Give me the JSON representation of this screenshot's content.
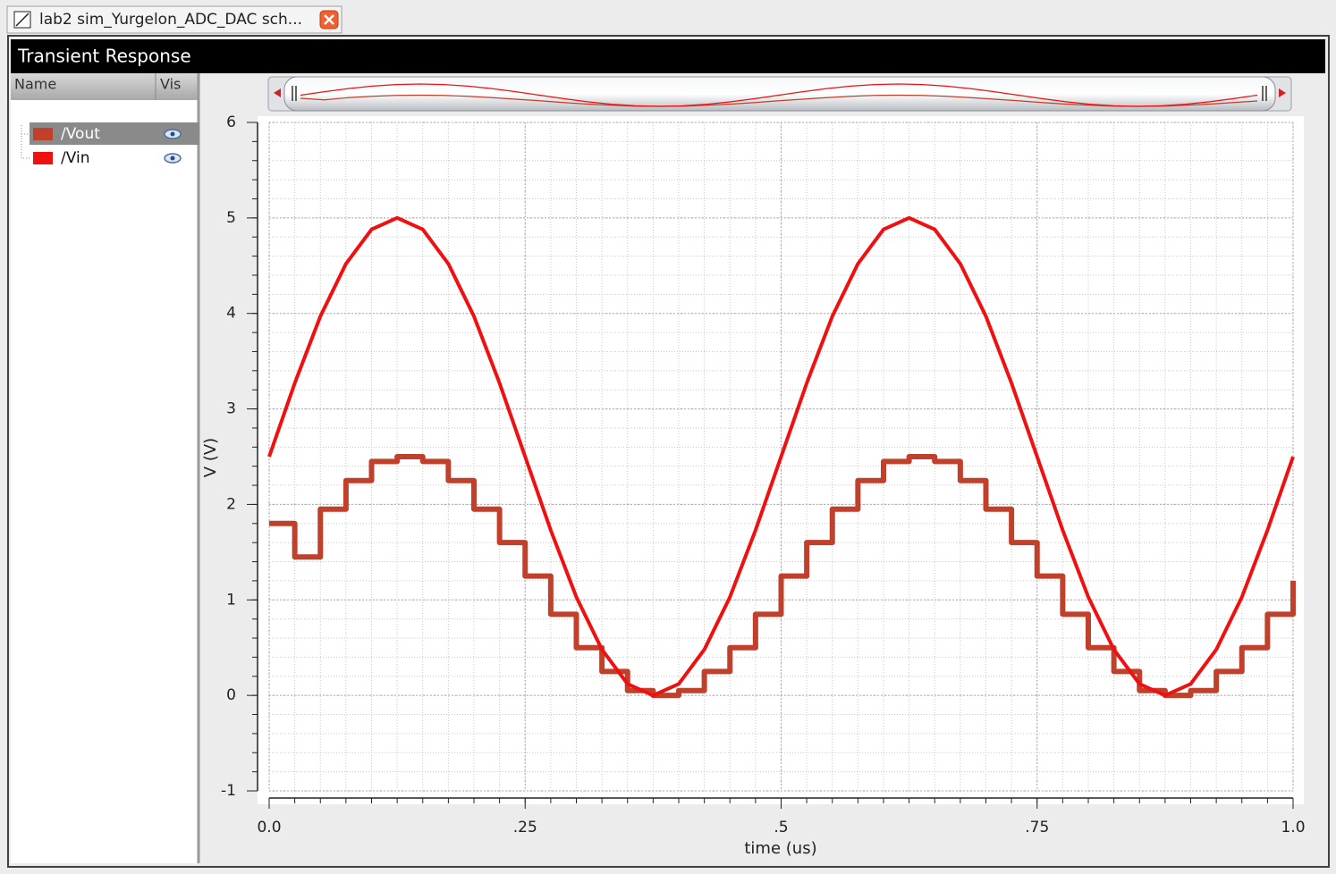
{
  "tab": {
    "title": "lab2 sim_Yurgelon_ADC_DAC sch..."
  },
  "window": {
    "title": "Transient Response"
  },
  "list": {
    "headers": [
      "Name",
      "Vis"
    ]
  },
  "chart_data": {
    "type": "line",
    "xlabel": "time (us)",
    "ylabel": "V (V)",
    "x": [
      0,
      0.025,
      0.05,
      0.075,
      0.1,
      0.125,
      0.15,
      0.175,
      0.2,
      0.225,
      0.25,
      0.275,
      0.3,
      0.325,
      0.35,
      0.375,
      0.4,
      0.425,
      0.45,
      0.475,
      0.5,
      0.525,
      0.55,
      0.575,
      0.6,
      0.625,
      0.65,
      0.675,
      0.7,
      0.725,
      0.75,
      0.775,
      0.8,
      0.825,
      0.85,
      0.875,
      0.9,
      0.925,
      0.95,
      0.975,
      1.0
    ],
    "series": [
      {
        "name": "/Vout",
        "color": "#c0402c",
        "step": true,
        "values": [
          1.8,
          1.45,
          1.95,
          2.25,
          2.45,
          2.5,
          2.45,
          2.25,
          1.95,
          1.6,
          1.25,
          0.85,
          0.5,
          0.25,
          0.05,
          0,
          0.05,
          0.25,
          0.5,
          0.85,
          1.25,
          1.6,
          1.95,
          2.25,
          2.45,
          2.5,
          2.45,
          2.25,
          1.95,
          1.6,
          1.25,
          0.85,
          0.5,
          0.25,
          0.05,
          0,
          0.05,
          0.25,
          0.5,
          0.85,
          1.2
        ]
      },
      {
        "name": "/Vin",
        "color": "#f01010",
        "step": false,
        "values": [
          2.5,
          3.27,
          3.97,
          4.52,
          4.88,
          5,
          4.88,
          4.52,
          3.97,
          3.27,
          2.5,
          1.73,
          1.03,
          0.48,
          0.12,
          0,
          0.12,
          0.48,
          1.03,
          1.73,
          2.5,
          3.27,
          3.97,
          4.52,
          4.88,
          5,
          4.88,
          4.52,
          3.97,
          3.27,
          2.5,
          1.73,
          1.03,
          0.48,
          0.12,
          0,
          0.12,
          0.48,
          1.03,
          1.73,
          2.5
        ]
      }
    ],
    "xlim": [
      0,
      1
    ],
    "ylim": [
      -1,
      6
    ],
    "xticks": [
      {
        "value": 0,
        "label": "0.0"
      },
      {
        "value": 0.25,
        "label": ".25"
      },
      {
        "value": 0.5,
        "label": ".5"
      },
      {
        "value": 0.75,
        "label": ".75"
      },
      {
        "value": 1,
        "label": "1.0"
      }
    ],
    "yticks": [
      -1,
      0,
      1,
      2,
      3,
      4,
      5,
      6
    ],
    "grid": true
  }
}
